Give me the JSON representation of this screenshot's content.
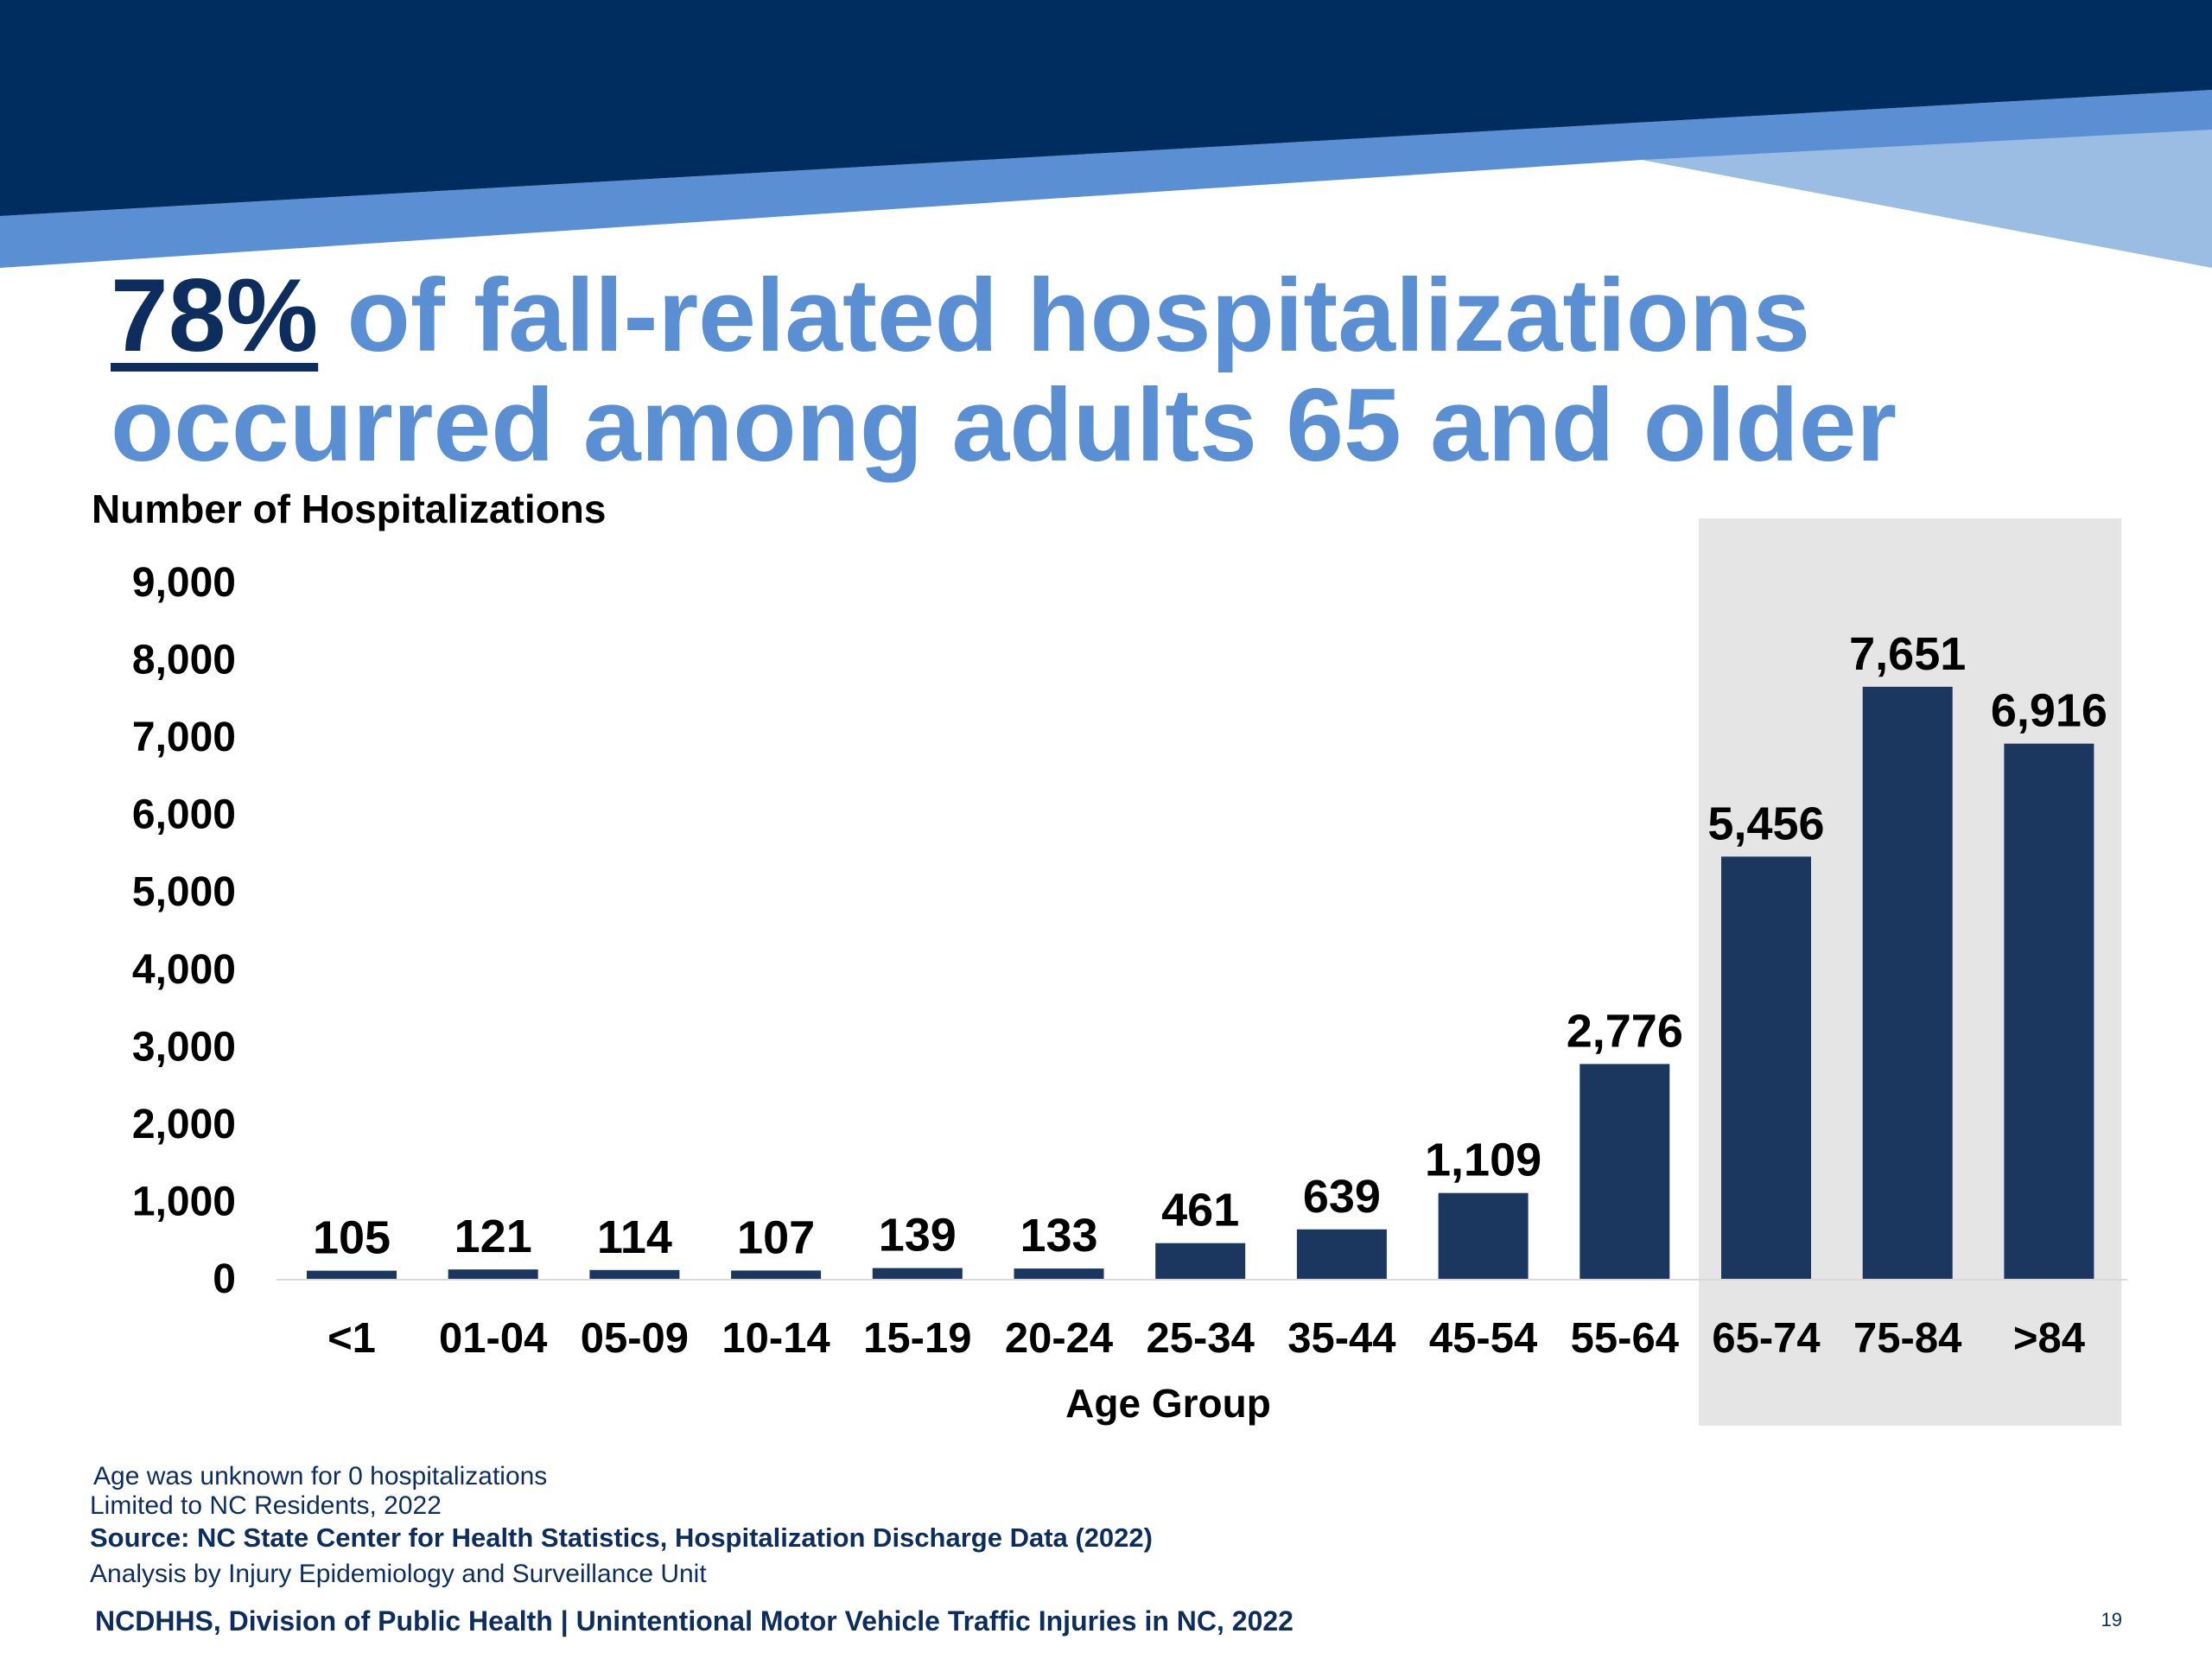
{
  "slide": {
    "title_highlight": "78%",
    "title_rest": " of fall-related hospitalizations occurred among adults 65 and older",
    "notes": {
      "unknown_age": "Age was unknown for 0 hospitalizations",
      "limited": "Limited to NC Residents, 2022",
      "source": "Source: NC State Center for Health Statistics, Hospitalization Discharge Data (2022)",
      "analysis": "Analysis by Injury Epidemiology and Surveillance Unit"
    },
    "footer": "NCDHHS, Division of Public Health | Unintentional Motor Vehicle Traffic Injuries in NC, 2022",
    "page_number": "19"
  },
  "colors": {
    "banner_dark": "#002d5f",
    "banner_mid": "#5b8fd3",
    "banner_light": "#9bbde3",
    "bar": "#1b365f",
    "highlight_bg": "#e5e5e5",
    "title_accent": "#5b8fd3",
    "text_dark": "#0c2d5e"
  },
  "chart_data": {
    "type": "bar",
    "ylabel": "Number of Hospitalizations",
    "xlabel": "Age Group",
    "ylim": [
      0,
      9000
    ],
    "yticks": [
      0,
      1000,
      2000,
      3000,
      4000,
      5000,
      6000,
      7000,
      8000,
      9000
    ],
    "ytick_labels": [
      "0",
      "1,000",
      "2,000",
      "3,000",
      "4,000",
      "5,000",
      "6,000",
      "7,000",
      "8,000",
      "9,000"
    ],
    "categories": [
      "<1",
      "01-04",
      "05-09",
      "10-14",
      "15-19",
      "20-24",
      "25-34",
      "35-44",
      "45-54",
      "55-64",
      "65-74",
      "75-84",
      ">84"
    ],
    "values": [
      105,
      121,
      114,
      107,
      139,
      133,
      461,
      639,
      1109,
      2776,
      5456,
      7651,
      6916
    ],
    "value_labels": [
      "105",
      "121",
      "114",
      "107",
      "139",
      "133",
      "461",
      "639",
      "1,109",
      "2,776",
      "5,456",
      "7,651",
      "6,916"
    ],
    "highlighted_categories": [
      "65-74",
      "75-84",
      ">84"
    ],
    "grid": false,
    "legend": "none"
  }
}
